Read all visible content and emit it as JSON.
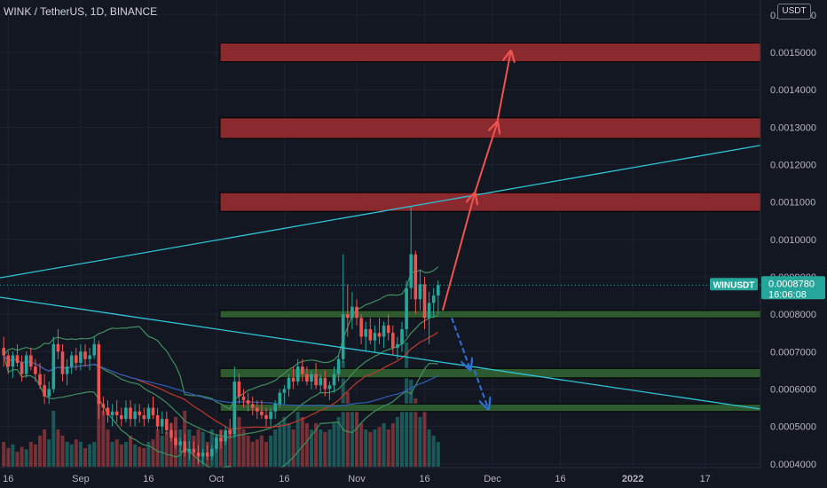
{
  "header": {
    "title": "WINK / TetherUS, 1D, BINANCE",
    "currency": "USDT"
  },
  "colors": {
    "bg": "#131722",
    "grid": "#1e2230",
    "up": "#26a69a",
    "down": "#ef5350",
    "trendline": "#2ec4d6",
    "zone_red": "#8b2a2e",
    "zone_green": "#2e5a2f",
    "bb_band": "#3f8f5f",
    "ema_red": "#c0392b",
    "ema_blue": "#2f5fb8",
    "arrow_red": "#ef5350",
    "arrow_blue": "#2f6fd8"
  },
  "chart_data": {
    "type": "candlestick",
    "symbol": "WINUSDT",
    "last_price": "0.0008780",
    "countdown": "16:06:08",
    "y_ticks": [
      "0.0004000",
      "0.0005000",
      "0.0006000",
      "0.0007000",
      "0.0008000",
      "0.0009000",
      "0.0010000",
      "0.0011000",
      "0.0012000",
      "0.0013000",
      "0.0014000",
      "0.0015000",
      "0.0016000"
    ],
    "ylim": [
      0.00039,
      0.00164
    ],
    "x_ticks": [
      {
        "label": "16",
        "day": -67
      },
      {
        "label": "Sep",
        "day": -51
      },
      {
        "label": "16",
        "day": -36
      },
      {
        "label": "Oct",
        "day": -21
      },
      {
        "label": "16",
        "day": -6
      },
      {
        "label": "Nov",
        "day": 10
      },
      {
        "label": "16",
        "day": 25
      },
      {
        "label": "Dec",
        "day": 40
      },
      {
        "label": "16",
        "day": 55
      },
      {
        "label": "2022",
        "day": 71
      },
      {
        "label": "17",
        "day": 87
      }
    ],
    "candles_note": "OHLC read approximately from the chart, day index 0 = Oct 22 2021",
    "candles": [
      [
        -68,
        0.00071,
        0.00074,
        0.00066,
        0.00069
      ],
      [
        -67,
        0.00069,
        0.0007,
        0.00064,
        0.00066
      ],
      [
        -66,
        0.00066,
        0.0007,
        0.00063,
        0.00069
      ],
      [
        -65,
        0.00069,
        0.00072,
        0.00066,
        0.00067
      ],
      [
        -64,
        0.00067,
        0.00069,
        0.00062,
        0.00064
      ],
      [
        -63,
        0.00064,
        0.0007,
        0.00063,
        0.00069
      ],
      [
        -62,
        0.00069,
        0.00071,
        0.00065,
        0.00066
      ],
      [
        -61,
        0.00066,
        0.00068,
        0.00062,
        0.00064
      ],
      [
        -60,
        0.00064,
        0.00067,
        0.0006,
        0.00061
      ],
      [
        -59,
        0.00061,
        0.00064,
        0.00056,
        0.00058
      ],
      [
        -58,
        0.00058,
        0.00062,
        0.00056,
        0.0006
      ],
      [
        -57,
        0.0006,
        0.00074,
        0.00059,
        0.00072
      ],
      [
        -56,
        0.00072,
        0.00076,
        0.00068,
        0.0007
      ],
      [
        -55,
        0.0007,
        0.00072,
        0.00062,
        0.00064
      ],
      [
        -54,
        0.00064,
        0.00068,
        0.00061,
        0.00066
      ],
      [
        -53,
        0.00066,
        0.0007,
        0.00064,
        0.00069
      ],
      [
        -52,
        0.00069,
        0.00071,
        0.00065,
        0.00067
      ],
      [
        -51,
        0.00067,
        0.00072,
        0.00065,
        0.0007
      ],
      [
        -50,
        0.0007,
        0.00072,
        0.00066,
        0.00068
      ],
      [
        -49,
        0.00068,
        0.00071,
        0.00065,
        0.00069
      ],
      [
        -48,
        0.00069,
        0.00074,
        0.00068,
        0.00072
      ],
      [
        -47,
        0.00072,
        0.00073,
        0.00052,
        0.00056
      ],
      [
        -46,
        0.00056,
        0.00058,
        0.00053,
        0.00055
      ],
      [
        -45,
        0.00055,
        0.00057,
        0.00051,
        0.00053
      ],
      [
        -44,
        0.00053,
        0.00056,
        0.0005,
        0.00054
      ],
      [
        -43,
        0.00054,
        0.00057,
        0.00051,
        0.00053
      ],
      [
        -42,
        0.00053,
        0.00055,
        0.0005,
        0.00052
      ],
      [
        -41,
        0.00052,
        0.00057,
        0.00051,
        0.00055
      ],
      [
        -40,
        0.00055,
        0.00057,
        0.0005,
        0.00052
      ],
      [
        -39,
        0.00052,
        0.00056,
        0.0005,
        0.00054
      ],
      [
        -38,
        0.00054,
        0.00056,
        0.00051,
        0.00053
      ],
      [
        -37,
        0.00053,
        0.00055,
        0.0005,
        0.00052
      ],
      [
        -36,
        0.00052,
        0.00056,
        0.00051,
        0.00055
      ],
      [
        -35,
        0.00055,
        0.00058,
        0.00052,
        0.00053
      ],
      [
        -34,
        0.00053,
        0.00055,
        0.00049,
        0.0005
      ],
      [
        -33,
        0.0005,
        0.00054,
        0.00048,
        0.00052
      ],
      [
        -32,
        0.00052,
        0.00054,
        0.00048,
        0.00049
      ],
      [
        -31,
        0.00049,
        0.00051,
        0.00046,
        0.00047
      ],
      [
        -30,
        0.00047,
        0.00049,
        0.00044,
        0.00045
      ],
      [
        -29,
        0.00045,
        0.00047,
        0.00043,
        0.00046
      ],
      [
        -28,
        0.00046,
        0.00048,
        0.00042,
        0.00043
      ],
      [
        -27,
        0.00043,
        0.00046,
        0.00041,
        0.00044
      ],
      [
        -26,
        0.00044,
        0.00046,
        0.00042,
        0.00043
      ],
      [
        -25,
        0.00043,
        0.00045,
        0.0004,
        0.00042
      ],
      [
        -24,
        0.00042,
        0.00044,
        0.0004,
        0.00043
      ],
      [
        -23,
        0.00043,
        0.00045,
        0.00041,
        0.00042
      ],
      [
        -22,
        0.00042,
        0.00045,
        0.00041,
        0.00044
      ],
      [
        -21,
        0.00044,
        0.00048,
        0.00043,
        0.00047
      ],
      [
        -20,
        0.00047,
        0.00049,
        0.00044,
        0.00046
      ],
      [
        -19,
        0.00046,
        0.0005,
        0.00045,
        0.00049
      ],
      [
        -18,
        0.00049,
        0.00052,
        0.00047,
        0.00048
      ],
      [
        -17,
        0.00048,
        0.00066,
        0.00047,
        0.00062
      ],
      [
        -16,
        0.00062,
        0.00064,
        0.00056,
        0.00058
      ],
      [
        -15,
        0.00058,
        0.0006,
        0.00055,
        0.00057
      ],
      [
        -14,
        0.00057,
        0.00059,
        0.00054,
        0.00056
      ],
      [
        -13,
        0.00056,
        0.00058,
        0.00053,
        0.00055
      ],
      [
        -12,
        0.00055,
        0.00057,
        0.00052,
        0.00054
      ],
      [
        -11,
        0.00054,
        0.00057,
        0.00052,
        0.00053
      ],
      [
        -10,
        0.00053,
        0.00055,
        0.0005,
        0.00052
      ],
      [
        -9,
        0.00052,
        0.00055,
        0.0005,
        0.00054
      ],
      [
        -8,
        0.00054,
        0.00057,
        0.00052,
        0.00056
      ],
      [
        -7,
        0.00056,
        0.0006,
        0.00055,
        0.00059
      ],
      [
        -6,
        0.00059,
        0.00061,
        0.00056,
        0.0006
      ],
      [
        -5,
        0.0006,
        0.00064,
        0.00058,
        0.00063
      ],
      [
        -4,
        0.00063,
        0.00066,
        0.0006,
        0.00062
      ],
      [
        -3,
        0.00062,
        0.00068,
        0.00061,
        0.00066
      ],
      [
        -2,
        0.00066,
        0.00068,
        0.00062,
        0.00064
      ],
      [
        -1,
        0.00064,
        0.00066,
        0.00061,
        0.00062
      ],
      [
        0,
        0.00062,
        0.00065,
        0.0006,
        0.00064
      ],
      [
        1,
        0.00064,
        0.00067,
        0.0006,
        0.00061
      ],
      [
        2,
        0.00061,
        0.00064,
        0.00059,
        0.00063
      ],
      [
        3,
        0.00063,
        0.00065,
        0.00058,
        0.0006
      ],
      [
        4,
        0.0006,
        0.00062,
        0.00057,
        0.00061
      ],
      [
        5,
        0.00061,
        0.00066,
        0.00059,
        0.00064
      ],
      [
        6,
        0.00064,
        0.00069,
        0.00062,
        0.00068
      ],
      [
        7,
        0.00068,
        0.00096,
        0.00067,
        0.0008
      ],
      [
        8,
        0.0008,
        0.00088,
        0.00074,
        0.00079
      ],
      [
        9,
        0.00079,
        0.00086,
        0.00076,
        0.00082
      ],
      [
        10,
        0.00082,
        0.00084,
        0.00077,
        0.00079
      ],
      [
        11,
        0.00079,
        0.0008,
        0.00072,
        0.00074
      ],
      [
        12,
        0.00074,
        0.00078,
        0.0007,
        0.00076
      ],
      [
        13,
        0.00076,
        0.00079,
        0.00072,
        0.00073
      ],
      [
        14,
        0.00073,
        0.00077,
        0.0007,
        0.00075
      ],
      [
        15,
        0.00075,
        0.00079,
        0.00072,
        0.00074
      ],
      [
        16,
        0.00074,
        0.00078,
        0.00071,
        0.00077
      ],
      [
        17,
        0.00077,
        0.0008,
        0.00073,
        0.00075
      ],
      [
        18,
        0.00075,
        0.00077,
        0.00069,
        0.00071
      ],
      [
        19,
        0.00071,
        0.00074,
        0.00068,
        0.00072
      ],
      [
        20,
        0.00072,
        0.00078,
        0.0007,
        0.00076
      ],
      [
        21,
        0.00076,
        0.00089,
        0.00074,
        0.00087
      ],
      [
        22,
        0.00087,
        0.00109,
        0.00084,
        0.00096
      ],
      [
        23,
        0.00096,
        0.00097,
        0.0008,
        0.00084
      ],
      [
        24,
        0.00084,
        0.00092,
        0.00081,
        0.00088
      ],
      [
        25,
        0.00088,
        0.0009,
        0.00076,
        0.00079
      ],
      [
        26,
        0.00079,
        0.00086,
        0.00072,
        0.00083
      ],
      [
        27,
        0.00083,
        0.00087,
        0.00079,
        0.00085
      ],
      [
        28,
        0.00085,
        0.00089,
        0.0008,
        0.000878
      ]
    ],
    "volumes_note": "relative volume 0-1, drawn in bottom pane",
    "volumes": [
      0.2,
      0.15,
      0.18,
      0.12,
      0.16,
      0.14,
      0.2,
      0.18,
      0.25,
      0.3,
      0.22,
      0.45,
      0.3,
      0.25,
      0.2,
      0.18,
      0.22,
      0.2,
      0.15,
      0.18,
      0.2,
      0.6,
      0.45,
      0.3,
      0.2,
      0.22,
      0.18,
      0.2,
      0.25,
      0.18,
      0.16,
      0.15,
      0.2,
      0.22,
      0.3,
      0.25,
      0.28,
      0.35,
      0.4,
      0.3,
      0.45,
      0.3,
      0.25,
      0.3,
      0.28,
      0.2,
      0.3,
      0.25,
      0.3,
      0.28,
      0.3,
      0.55,
      0.4,
      0.3,
      0.25,
      0.2,
      0.22,
      0.25,
      0.2,
      0.25,
      0.3,
      0.35,
      0.4,
      0.35,
      0.3,
      0.45,
      0.4,
      0.35,
      0.3,
      0.35,
      0.3,
      0.28,
      0.3,
      0.35,
      0.4,
      0.85,
      0.6,
      0.45,
      0.5,
      0.35,
      0.3,
      0.28,
      0.3,
      0.32,
      0.35,
      0.3,
      0.35,
      0.4,
      0.45,
      1.0,
      0.7,
      0.55,
      0.4,
      0.45,
      0.3,
      0.25,
      0.2
    ],
    "zones": [
      {
        "kind": "resistance",
        "from_day": 1,
        "to_day": 999,
        "low": 0.001475,
        "high": 0.001525
      },
      {
        "kind": "resistance",
        "from_day": 1,
        "to_day": 999,
        "low": 0.00127,
        "high": 0.001325
      },
      {
        "kind": "resistance",
        "from_day": 1,
        "to_day": 999,
        "low": 0.001075,
        "high": 0.001125
      },
      {
        "kind": "support",
        "from_day": 1,
        "to_day": 999,
        "low": 0.00079,
        "high": 0.00081
      },
      {
        "kind": "support",
        "from_day": 1,
        "to_day": 999,
        "low": 0.00063,
        "high": 0.000655
      },
      {
        "kind": "support",
        "from_day": 1,
        "to_day": 999,
        "low": 0.00054,
        "high": 0.00056
      }
    ],
    "trendlines": [
      {
        "from": [
          -77,
          0.00088
        ],
        "to": [
          100,
          0.001253
        ]
      },
      {
        "from": [
          -77,
          0.00086
        ],
        "to": [
          100,
          0.000545
        ]
      }
    ],
    "arrows_up": [
      [
        [
          29,
          0.00081
        ],
        [
          36,
          0.00112
        ]
      ],
      [
        [
          36,
          0.00112
        ],
        [
          41,
          0.00131
        ]
      ],
      [
        [
          41,
          0.00131
        ],
        [
          44,
          0.0015
        ]
      ]
    ],
    "arrows_down": [
      [
        [
          31,
          0.00079
        ],
        [
          35,
          0.000655
        ]
      ],
      [
        [
          36,
          0.00065
        ],
        [
          39,
          0.00055
        ]
      ]
    ]
  }
}
